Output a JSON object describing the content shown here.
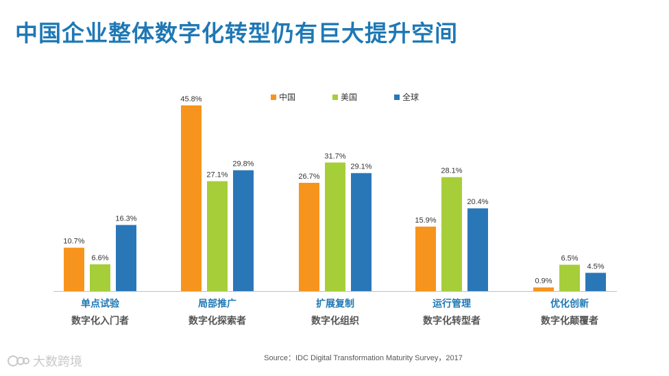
{
  "title": "中国企业整体数字化转型仍有巨大提升空间",
  "source": "Source：IDC Digital Transformation Maturity Survey，2017",
  "watermark": "大数跨境",
  "colors": {
    "title": "#1f78b4",
    "china": "#f7941d",
    "usa": "#a6ce39",
    "global": "#2a77b8",
    "category": "#1f78b4"
  },
  "chart_data": {
    "type": "bar",
    "categories": [
      "单点试验",
      "局部推广",
      "扩展复制",
      "运行管理",
      "优化创新"
    ],
    "subcategories": [
      "数字化入门者",
      "数字化探索者",
      "数字化组织",
      "数字化转型者",
      "数字化颠覆者"
    ],
    "series": [
      {
        "name": "中国",
        "values": [
          10.7,
          45.8,
          26.7,
          15.9,
          0.9
        ],
        "labels": [
          "10.7%",
          "45.8%",
          "26.7%",
          "15.9%",
          "0.9%"
        ]
      },
      {
        "name": "美国",
        "values": [
          6.6,
          27.1,
          31.7,
          28.1,
          6.5
        ],
        "labels": [
          "6.6%",
          "27.1%",
          "31.7%",
          "28.1%",
          "6.5%"
        ]
      },
      {
        "name": "全球",
        "values": [
          16.3,
          29.8,
          29.1,
          20.4,
          4.5
        ],
        "labels": [
          "16.3%",
          "29.8%",
          "29.1%",
          "20.4%",
          "4.5%"
        ]
      }
    ],
    "legend_position": "top-center",
    "grid": false
  }
}
